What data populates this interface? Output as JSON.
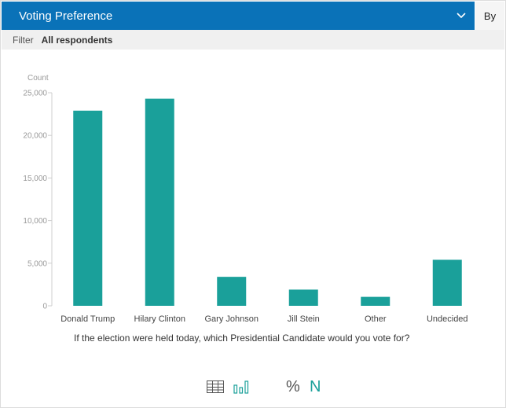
{
  "header": {
    "title": "Voting Preference",
    "tab_by": "By"
  },
  "filter": {
    "label": "Filter",
    "value": "All respondents"
  },
  "question": "If the election were held today, which Presidential Candidate would you vote for?",
  "colors": {
    "header": "#0a72b8",
    "bar": "#1aa09a",
    "accent": "#1aa09a"
  },
  "toolbar": {
    "table_icon": "table-icon",
    "bar_chart_icon": "bar-chart-icon",
    "percent_label": "%",
    "count_label": "N"
  },
  "chart_data": {
    "type": "bar",
    "ylabel": "Count",
    "ylim": [
      0,
      25000
    ],
    "yticks": [
      0,
      5000,
      10000,
      15000,
      20000,
      25000
    ],
    "ytick_labels": [
      "0",
      "5,000",
      "10,000",
      "15,000",
      "20,000",
      "25,000"
    ],
    "categories": [
      "Donald Trump",
      "Hilary Clinton",
      "Gary Johnson",
      "Jill Stein",
      "Other",
      "Undecided"
    ],
    "values": [
      22900,
      24300,
      3400,
      1900,
      1050,
      5400
    ],
    "grid": false
  }
}
